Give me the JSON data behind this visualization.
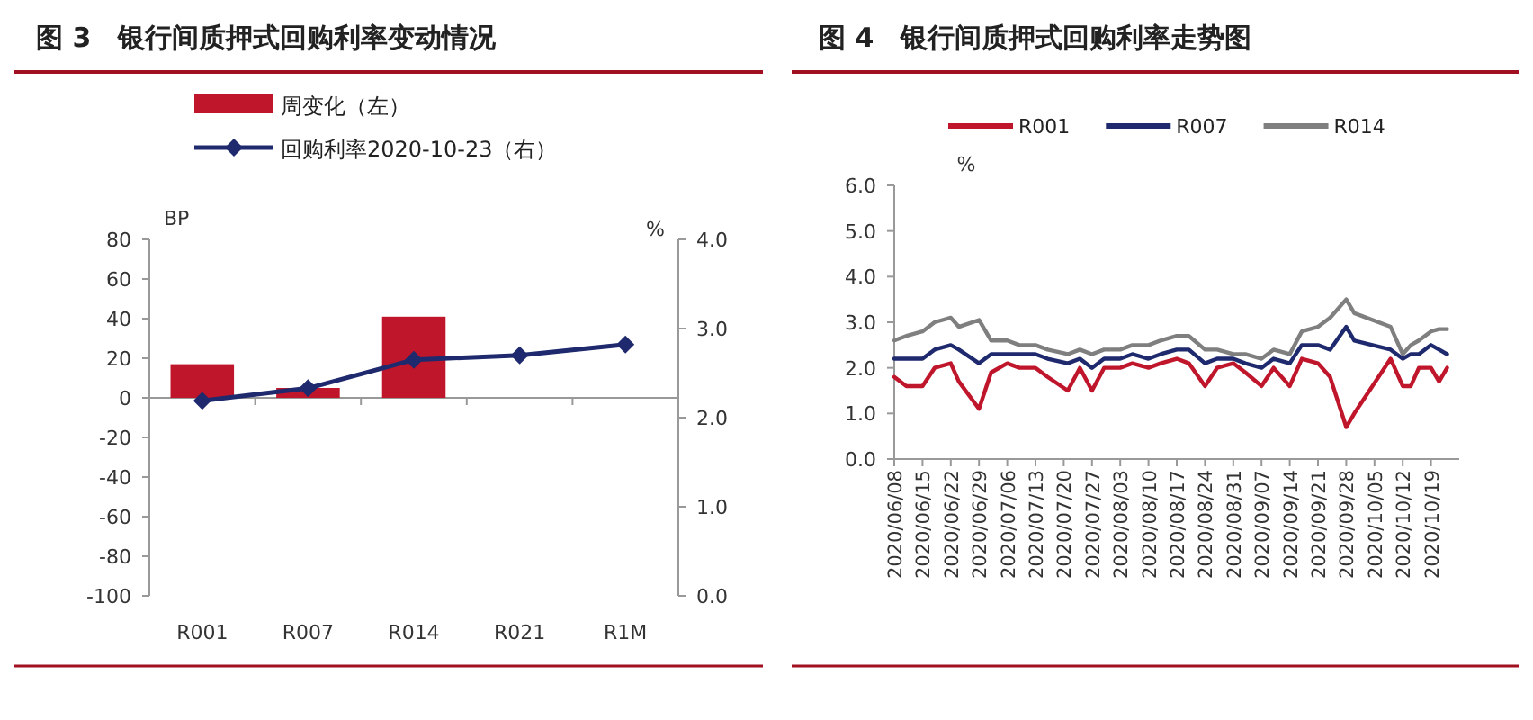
{
  "chart_data": [
    {
      "type": "bar",
      "title": "图 3　银行间质押式回购利率变动情况",
      "ylabel": "BP",
      "y2label": "%",
      "categories": [
        "R001",
        "R007",
        "R014",
        "R021",
        "R1M"
      ],
      "series": [
        {
          "name": "周变化（左）",
          "type": "bar",
          "color": "#c0162b",
          "values": [
            17,
            5,
            41,
            0,
            0
          ]
        },
        {
          "name": "回购利率2020-10-23（右）",
          "type": "line",
          "axis": "y2",
          "marker": "diamond",
          "color": "#1f2a6e",
          "values": [
            2.19,
            2.33,
            2.65,
            2.7,
            2.82
          ]
        }
      ],
      "ylim": [
        -100,
        80
      ],
      "yticks": [
        -100,
        -80,
        -60,
        -40,
        -20,
        0,
        20,
        40,
        60,
        80
      ],
      "y2lim": [
        0,
        4
      ],
      "y2ticks": [
        {
          "value": 0,
          "label": "0.0"
        },
        {
          "value": 1,
          "label": "1.0"
        },
        {
          "value": 2,
          "label": "2.0"
        },
        {
          "value": 3,
          "label": "3.0"
        },
        {
          "value": 4,
          "label": "4.0"
        }
      ],
      "legend": "top left"
    },
    {
      "type": "line",
      "title": "图 4　银行间质押式回购利率走势图",
      "ylabel": "%",
      "x": [
        "2020-06-08",
        "2020-06-11",
        "2020-06-15",
        "2020-06-18",
        "2020-06-22",
        "2020-06-24",
        "2020-06-29",
        "2020-07-02",
        "2020-07-06",
        "2020-07-09",
        "2020-07-13",
        "2020-07-16",
        "2020-07-21",
        "2020-07-24",
        "2020-07-27",
        "2020-07-30",
        "2020-08-03",
        "2020-08-06",
        "2020-08-10",
        "2020-08-13",
        "2020-08-17",
        "2020-08-20",
        "2020-08-24",
        "2020-08-27",
        "2020-08-31",
        "2020-09-03",
        "2020-09-07",
        "2020-09-10",
        "2020-09-14",
        "2020-09-17",
        "2020-09-21",
        "2020-09-24",
        "2020-09-28",
        "2020-09-30",
        "2020-10-09",
        "2020-10-12",
        "2020-10-14",
        "2020-10-16",
        "2020-10-19",
        "2020-10-21",
        "2020-10-23"
      ],
      "series": [
        {
          "name": "R001",
          "color": "#c0162b",
          "values": [
            1.8,
            1.6,
            1.6,
            2.0,
            2.1,
            1.7,
            1.1,
            1.9,
            2.1,
            2.0,
            2.0,
            1.8,
            1.5,
            2.0,
            1.5,
            2.0,
            2.0,
            2.1,
            2.0,
            2.1,
            2.2,
            2.1,
            1.6,
            2.0,
            2.1,
            1.9,
            1.6,
            2.0,
            1.6,
            2.2,
            2.1,
            1.8,
            0.7,
            1.0,
            2.2,
            1.6,
            1.6,
            2.0,
            2.0,
            1.7,
            2.0
          ]
        },
        {
          "name": "R007",
          "color": "#1f2a6e",
          "values": [
            2.2,
            2.2,
            2.2,
            2.4,
            2.5,
            2.4,
            2.1,
            2.3,
            2.3,
            2.3,
            2.3,
            2.2,
            2.1,
            2.2,
            2.0,
            2.2,
            2.2,
            2.3,
            2.2,
            2.3,
            2.4,
            2.4,
            2.1,
            2.2,
            2.2,
            2.1,
            2.0,
            2.2,
            2.1,
            2.5,
            2.5,
            2.4,
            2.9,
            2.6,
            2.4,
            2.2,
            2.3,
            2.3,
            2.5,
            2.4,
            2.3
          ]
        },
        {
          "name": "R014",
          "color": "#7f7f7f",
          "values": [
            2.6,
            2.7,
            2.8,
            3.0,
            3.1,
            2.9,
            3.05,
            2.6,
            2.6,
            2.5,
            2.5,
            2.4,
            2.3,
            2.4,
            2.3,
            2.4,
            2.4,
            2.5,
            2.5,
            2.6,
            2.7,
            2.7,
            2.4,
            2.4,
            2.3,
            2.3,
            2.2,
            2.4,
            2.3,
            2.8,
            2.9,
            3.1,
            3.5,
            3.2,
            2.9,
            2.3,
            2.5,
            2.6,
            2.8,
            2.85,
            2.85
          ]
        }
      ],
      "xlim": [
        "2020-06-08",
        "2020-10-26"
      ],
      "xticks": [
        {
          "value": "2020-06-08",
          "label": "2020/06/08"
        },
        {
          "value": "2020-06-15",
          "label": "2020/06/15"
        },
        {
          "value": "2020-06-22",
          "label": "2020/06/22"
        },
        {
          "value": "2020-06-29",
          "label": "2020/06/29"
        },
        {
          "value": "2020-07-06",
          "label": "2020/07/06"
        },
        {
          "value": "2020-07-13",
          "label": "2020/07/13"
        },
        {
          "value": "2020-07-20",
          "label": "2020/07/20"
        },
        {
          "value": "2020-07-27",
          "label": "2020/07/27"
        },
        {
          "value": "2020-08-03",
          "label": "2020/08/03"
        },
        {
          "value": "2020-08-10",
          "label": "2020/08/10"
        },
        {
          "value": "2020-08-17",
          "label": "2020/08/17"
        },
        {
          "value": "2020-08-24",
          "label": "2020/08/24"
        },
        {
          "value": "2020-08-31",
          "label": "2020/08/31"
        },
        {
          "value": "2020-09-07",
          "label": "2020/09/07"
        },
        {
          "value": "2020-09-14",
          "label": "2020/09/14"
        },
        {
          "value": "2020-09-21",
          "label": "2020/09/21"
        },
        {
          "value": "2020-09-28",
          "label": "2020/09/28"
        },
        {
          "value": "2020-10-05",
          "label": "2020/10/05"
        },
        {
          "value": "2020-10-12",
          "label": "2020/10/12"
        },
        {
          "value": "2020-10-19",
          "label": "2020/10/19"
        }
      ],
      "ylim": [
        0,
        6
      ],
      "yticks": [
        {
          "value": 0,
          "label": "0.0"
        },
        {
          "value": 1,
          "label": "1.0"
        },
        {
          "value": 2,
          "label": "2.0"
        },
        {
          "value": 3,
          "label": "3.0"
        },
        {
          "value": 4,
          "label": "4.0"
        },
        {
          "value": 5,
          "label": "5.0"
        },
        {
          "value": 6,
          "label": "6.0"
        }
      ],
      "legend": "top",
      "marker": "none",
      "line_style": "solid"
    }
  ]
}
